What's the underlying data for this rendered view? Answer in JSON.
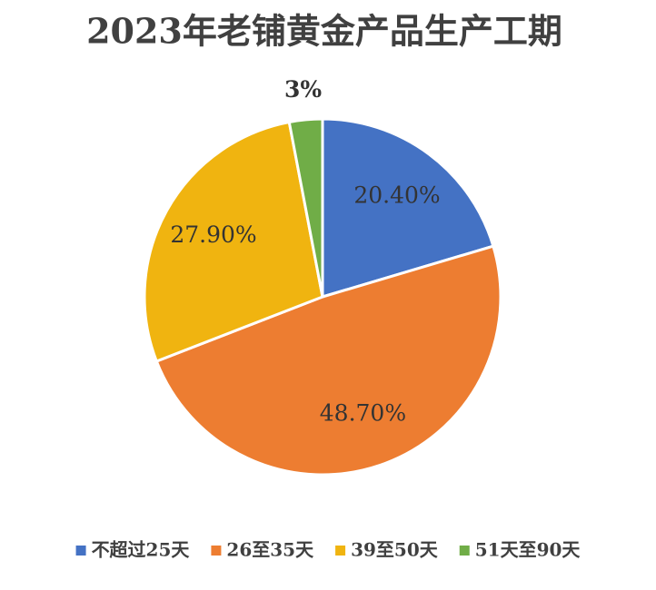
{
  "chart_data": {
    "type": "pie",
    "title": "2023年老铺黄金产品生产工期",
    "categories": [
      "不超过25天",
      "26至35天",
      "39至50天",
      "51天至90天"
    ],
    "values": [
      20.4,
      48.7,
      27.9,
      3
    ],
    "value_labels": [
      "20.40%",
      "48.70%",
      "27.90%",
      "3%"
    ],
    "colors": [
      "#4472c4",
      "#ed7d31",
      "#f0b410",
      "#70ad47"
    ],
    "legend": "bottom"
  }
}
